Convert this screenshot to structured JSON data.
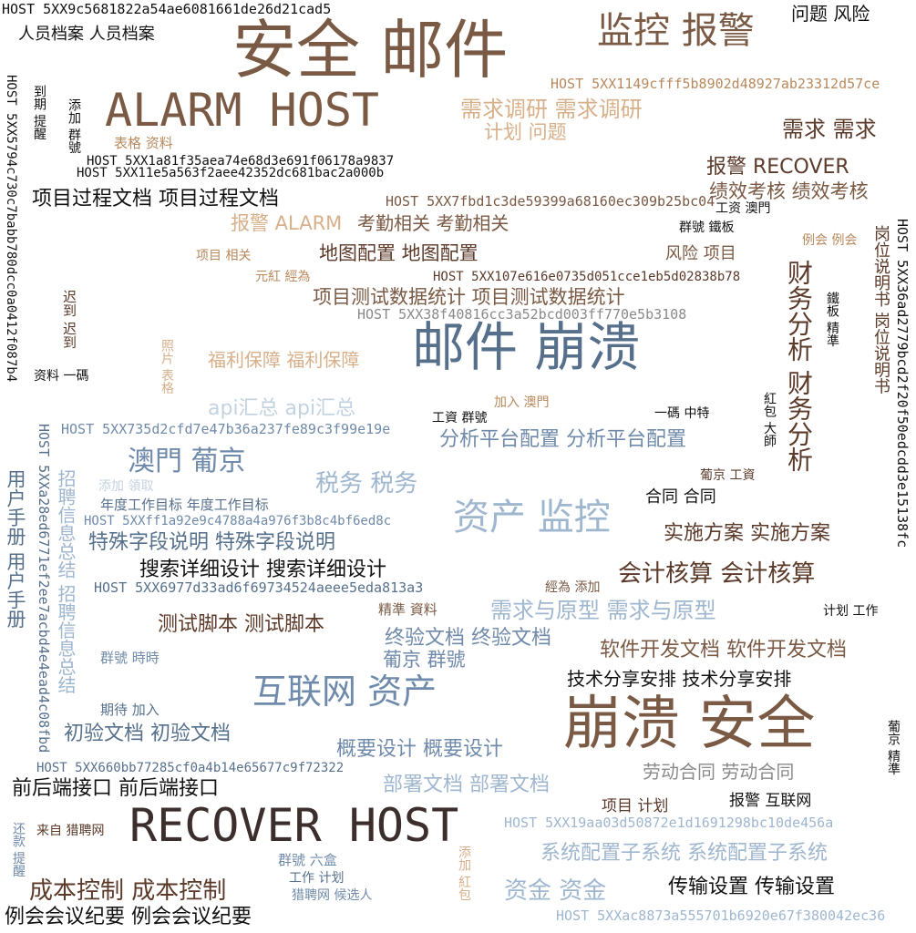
{
  "words": [
    {
      "text": "HOST 5XX9c5681822a54ae6081661de26d21cad5"
    },
    {
      "text": "人员档案 人员档案"
    },
    {
      "text": "安全 邮件"
    },
    {
      "text": "监控 报警"
    },
    {
      "text": "问题 风险"
    },
    {
      "text": "HOST 5XX1149cfff5b8902d48927ab23312d57ce"
    },
    {
      "text": "ALARM HOST"
    },
    {
      "text": "需求调研 需求调研"
    },
    {
      "text": "计划 问题"
    },
    {
      "text": "需求 需求"
    },
    {
      "text": "表格 资料"
    },
    {
      "text": "HOST 5XX1a81f35aea74e68d3e691f06178a9837"
    },
    {
      "text": "HOST 5XX11e5a563f2aee42352dc681bac2a000b"
    },
    {
      "text": "报警 RECOVER"
    },
    {
      "text": "绩效考核 绩效考核"
    },
    {
      "text": "项目过程文档 项目过程文档"
    },
    {
      "text": "HOST 5XX7fbd1c3de59399a68160ec309b25bc04"
    },
    {
      "text": "工资 澳門"
    },
    {
      "text": "报警 ALARM"
    },
    {
      "text": "考勤相关 考勤相关"
    },
    {
      "text": "群號 鐵板"
    },
    {
      "text": "例会 例会"
    },
    {
      "text": "项目 相关"
    },
    {
      "text": "地图配置 地图配置"
    },
    {
      "text": "风险 项目"
    },
    {
      "text": "元紅 經為"
    },
    {
      "text": "HOST 5XX107e616e0735d051cce1eb5d02838b78"
    },
    {
      "text": "项目测试数据统计 项目测试数据统计"
    },
    {
      "text": "HOST 5XX38f40816cc3a52bcd003ff770e5b3108"
    },
    {
      "text": "邮件 崩溃"
    },
    {
      "text": "资料 一碼"
    },
    {
      "text": "福利保障 福利保障"
    },
    {
      "text": "api汇总 api汇总"
    },
    {
      "text": "加入 澳門"
    },
    {
      "text": "工資 群號"
    },
    {
      "text": "一碼 中特"
    },
    {
      "text": "HOST 5XX735d2cfd7e47b36a237fe89c3f99e19e"
    },
    {
      "text": "分析平台配置 分析平台配置"
    },
    {
      "text": "澳門 葡京"
    },
    {
      "text": "税务 税务"
    },
    {
      "text": "添加 領取"
    },
    {
      "text": "葡京 工資"
    },
    {
      "text": "合同 合同"
    },
    {
      "text": "资产 监控"
    },
    {
      "text": "年度工作目标 年度工作目标"
    },
    {
      "text": "HOST 5XXff1a92e9c4788a4a976f3b8c4bf6ed8c"
    },
    {
      "text": "实施方案 实施方案"
    },
    {
      "text": "特殊字段说明 特殊字段说明"
    },
    {
      "text": "搜索详细设计 搜索详细设计"
    },
    {
      "text": "会计核算 会计核算"
    },
    {
      "text": "HOST 5XX6977d33ad6f69734524aeee5eda813a3"
    },
    {
      "text": "經為 添加"
    },
    {
      "text": "精準 資料"
    },
    {
      "text": "需求与原型 需求与原型"
    },
    {
      "text": "计划 工作"
    },
    {
      "text": "测试脚本 测试脚本"
    },
    {
      "text": "终验文档 终验文档"
    },
    {
      "text": "软件开发文档 软件开发文档"
    },
    {
      "text": "群號 時時"
    },
    {
      "text": "葡京 群號"
    },
    {
      "text": "技术分享安排 技术分享安排"
    },
    {
      "text": "互联网 资产"
    },
    {
      "text": "期待 加入"
    },
    {
      "text": "崩溃 安全"
    },
    {
      "text": "初验文档 初验文档"
    },
    {
      "text": "概要设计 概要设计"
    },
    {
      "text": "HOST 5XX660bb77285cf0a4b14e65677c9f72322"
    },
    {
      "text": "劳动合同 劳动合同"
    },
    {
      "text": "前后端接口 前后端接口"
    },
    {
      "text": "部署文档 部署文档"
    },
    {
      "text": "项目 计划"
    },
    {
      "text": "报警 互联网"
    },
    {
      "text": "RECOVER HOST"
    },
    {
      "text": "来自 猎聘网"
    },
    {
      "text": "HOST 5XX19aa03d50872e1d1691298bc10de456a"
    },
    {
      "text": "系统配置子系统 系统配置子系统"
    },
    {
      "text": "群號 六盒"
    },
    {
      "text": "工作 计划"
    },
    {
      "text": "成本控制 成本控制"
    },
    {
      "text": "资金 资金"
    },
    {
      "text": "传输设置 传输设置"
    },
    {
      "text": "猎聘网 候选人"
    },
    {
      "text": "例会会议纪要 例会会议纪要"
    },
    {
      "text": "HOST 5XXac8873a555701b6920e67f380042ec36"
    },
    {
      "text": "HOST 5XXa28ed6771ef2ee7acbd4e4ead4c08fbd"
    },
    {
      "text": "HOST 5XX5794c730c7babb780dcc0a0412f087b4"
    },
    {
      "text": "HOST 5XX36ad2779bcd2f20f50edcdd3e15138fc"
    },
    {
      "text": "到期 提醒"
    },
    {
      "text": "添加 群號"
    },
    {
      "text": "迟到 迟到"
    },
    {
      "text": "照片 表格"
    },
    {
      "text": "用户手册 用户手册"
    },
    {
      "text": "招聘信息总结 招聘信息总结"
    },
    {
      "text": "财务分析 财务分析"
    },
    {
      "text": "岗位说明书 岗位说明书"
    },
    {
      "text": "鐵板 精準"
    },
    {
      "text": "紅包 大師"
    },
    {
      "text": "葡京 精準"
    },
    {
      "text": "还款 提醒"
    },
    {
      "text": "添加 紅包"
    }
  ],
  "palette": {
    "black": "#111111",
    "dark_brown": "#5b3a2a",
    "brown": "#7a5a44",
    "tan": "#b8895c",
    "light_tan": "#d7b08a",
    "slate": "#56708c",
    "steel": "#6f8aaa",
    "light_blue": "#9fb6cf",
    "pale_blue": "#c3d2e0",
    "gray": "#8a8a8a"
  }
}
